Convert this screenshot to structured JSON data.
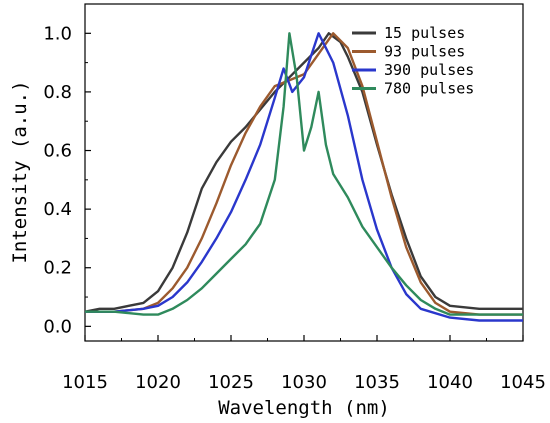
{
  "chart_data": {
    "type": "line",
    "xlabel": "Wavelength (nm)",
    "ylabel": "Intensity (a.u.)",
    "xlim": [
      1015,
      1045
    ],
    "ylim": [
      -0.05,
      1.1
    ],
    "x_ticks": [
      "1015",
      "1020",
      "1025",
      "1030",
      "1035",
      "1040",
      "1045"
    ],
    "y_ticks": [
      "0.0",
      "0.2",
      "0.4",
      "0.6",
      "0.8",
      "1.0"
    ],
    "grid": false,
    "legend_position": "top-right",
    "series": [
      {
        "name": "15 pulses",
        "color": "#3a3a3a",
        "points": [
          [
            1015,
            0.05
          ],
          [
            1016,
            0.06
          ],
          [
            1017,
            0.06
          ],
          [
            1018,
            0.07
          ],
          [
            1019,
            0.08
          ],
          [
            1020,
            0.12
          ],
          [
            1021,
            0.2
          ],
          [
            1022,
            0.32
          ],
          [
            1023,
            0.47
          ],
          [
            1024,
            0.56
          ],
          [
            1025,
            0.63
          ],
          [
            1026,
            0.68
          ],
          [
            1027,
            0.74
          ],
          [
            1028,
            0.8
          ],
          [
            1029,
            0.85
          ],
          [
            1030,
            0.9
          ],
          [
            1031,
            0.95
          ],
          [
            1031.7,
            1.0
          ],
          [
            1032.5,
            0.97
          ],
          [
            1033,
            0.92
          ],
          [
            1034,
            0.8
          ],
          [
            1035,
            0.62
          ],
          [
            1036,
            0.45
          ],
          [
            1037,
            0.3
          ],
          [
            1038,
            0.17
          ],
          [
            1039,
            0.1
          ],
          [
            1040,
            0.07
          ],
          [
            1042,
            0.06
          ],
          [
            1045,
            0.06
          ]
        ]
      },
      {
        "name": "93 pulses",
        "color": "#9c5a2e",
        "points": [
          [
            1015,
            0.05
          ],
          [
            1017,
            0.05
          ],
          [
            1019,
            0.06
          ],
          [
            1020,
            0.08
          ],
          [
            1021,
            0.13
          ],
          [
            1022,
            0.2
          ],
          [
            1023,
            0.3
          ],
          [
            1024,
            0.42
          ],
          [
            1025,
            0.55
          ],
          [
            1026,
            0.66
          ],
          [
            1027,
            0.75
          ],
          [
            1028,
            0.82
          ],
          [
            1029,
            0.84
          ],
          [
            1030,
            0.86
          ],
          [
            1031,
            0.93
          ],
          [
            1032,
            1.0
          ],
          [
            1033,
            0.95
          ],
          [
            1034,
            0.82
          ],
          [
            1035,
            0.63
          ],
          [
            1036,
            0.44
          ],
          [
            1037,
            0.27
          ],
          [
            1038,
            0.15
          ],
          [
            1039,
            0.08
          ],
          [
            1040,
            0.05
          ],
          [
            1042,
            0.04
          ],
          [
            1045,
            0.04
          ]
        ]
      },
      {
        "name": "390 pulses",
        "color": "#2a37cc",
        "points": [
          [
            1015,
            0.05
          ],
          [
            1017,
            0.05
          ],
          [
            1019,
            0.06
          ],
          [
            1020,
            0.07
          ],
          [
            1021,
            0.1
          ],
          [
            1022,
            0.15
          ],
          [
            1023,
            0.22
          ],
          [
            1024,
            0.3
          ],
          [
            1025,
            0.39
          ],
          [
            1026,
            0.5
          ],
          [
            1027,
            0.62
          ],
          [
            1028,
            0.78
          ],
          [
            1028.6,
            0.88
          ],
          [
            1029.2,
            0.8
          ],
          [
            1030,
            0.85
          ],
          [
            1031,
            1.0
          ],
          [
            1032,
            0.9
          ],
          [
            1033,
            0.72
          ],
          [
            1034,
            0.5
          ],
          [
            1035,
            0.33
          ],
          [
            1036,
            0.2
          ],
          [
            1037,
            0.11
          ],
          [
            1038,
            0.06
          ],
          [
            1040,
            0.03
          ],
          [
            1042,
            0.02
          ],
          [
            1045,
            0.02
          ]
        ]
      },
      {
        "name": "780 pulses",
        "color": "#2f8a5c",
        "points": [
          [
            1015,
            0.05
          ],
          [
            1017,
            0.05
          ],
          [
            1019,
            0.04
          ],
          [
            1020,
            0.04
          ],
          [
            1021,
            0.06
          ],
          [
            1022,
            0.09
          ],
          [
            1023,
            0.13
          ],
          [
            1024,
            0.18
          ],
          [
            1025,
            0.23
          ],
          [
            1026,
            0.28
          ],
          [
            1027,
            0.35
          ],
          [
            1028,
            0.5
          ],
          [
            1028.6,
            0.75
          ],
          [
            1029,
            1.0
          ],
          [
            1029.5,
            0.85
          ],
          [
            1030,
            0.6
          ],
          [
            1030.5,
            0.68
          ],
          [
            1031,
            0.8
          ],
          [
            1031.5,
            0.62
          ],
          [
            1032,
            0.52
          ],
          [
            1033,
            0.44
          ],
          [
            1034,
            0.34
          ],
          [
            1035,
            0.27
          ],
          [
            1036,
            0.2
          ],
          [
            1037,
            0.14
          ],
          [
            1038,
            0.09
          ],
          [
            1039,
            0.06
          ],
          [
            1040,
            0.04
          ],
          [
            1042,
            0.04
          ],
          [
            1045,
            0.04
          ]
        ]
      }
    ]
  }
}
